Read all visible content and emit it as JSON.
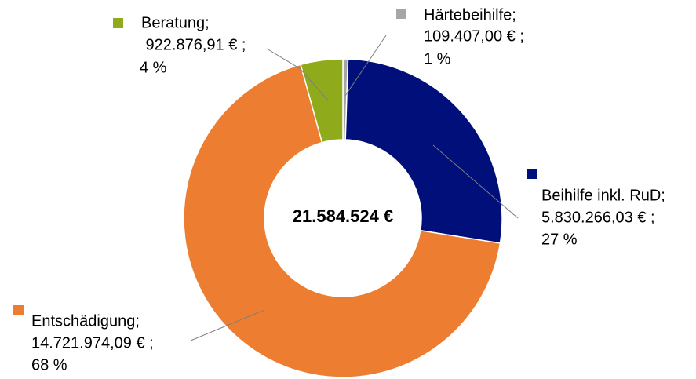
{
  "chart_data": {
    "type": "donut",
    "center_label": "21.584.524 €",
    "categories": [
      "Härtebeihilfe;",
      "Beihilfe inkl. RuD;",
      "Entschädigung;",
      "Beratung;"
    ],
    "values": [
      109407.0,
      5830266.03,
      14721974.09,
      922876.91
    ],
    "value_labels": [
      "109.407,00 € ;",
      "5.830.266,03 € ;",
      "14.721.974,09 € ;",
      " 922.876,91 € ;"
    ],
    "percents": [
      1,
      27,
      68,
      4
    ],
    "percent_labels": [
      "1 %",
      "27 %",
      "68 %",
      "4 %"
    ],
    "colors": [
      "#a6a6a6",
      "#000f7a",
      "#ed7d31",
      "#8faa1a"
    ]
  }
}
